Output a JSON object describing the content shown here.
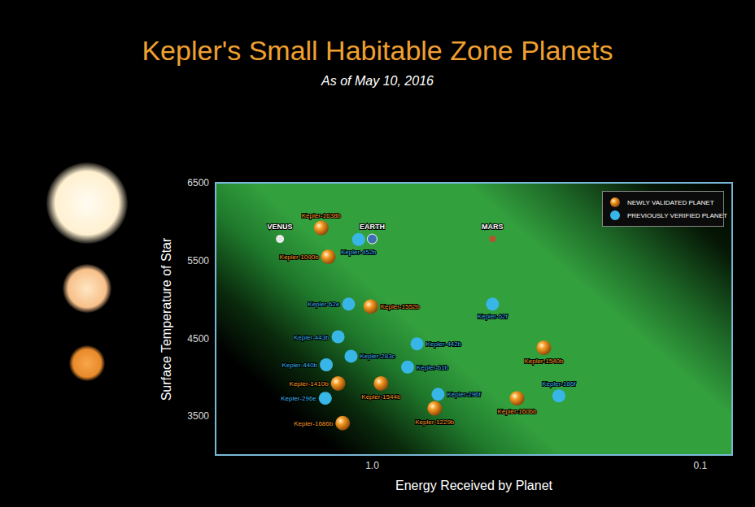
{
  "chart_data": {
    "type": "scatter",
    "title": "Kepler's Small Habitable Zone Planets",
    "subtitle": "As of May 10, 2016",
    "x_label": "Energy Received by Planet",
    "y_label": "Surface Temperature of Star",
    "log": "x",
    "xlim": [
      3,
      0.08
    ],
    "ylim": [
      3000,
      6500
    ],
    "xticks": [
      {
        "value": 1,
        "label": "1.0"
      },
      {
        "value": 0.1,
        "label": "0.1"
      }
    ],
    "yticks": [
      3500,
      4500,
      5500,
      6500
    ],
    "grid": false,
    "legend": "upper right",
    "series": [
      {
        "name": "NEWLY VALIDATED PLANET",
        "color": "#f59a23",
        "marker": "sphere",
        "labels": [
          "Kepler-1638b",
          "Kepler-1090b",
          "Kepler-1552b",
          "Kepler-1540b",
          "Kepler-1410b",
          "Kepler-1544b",
          "Kepler-1229b",
          "Kepler-1606b",
          "Kepler-1686b"
        ],
        "x": [
          1.43,
          1.36,
          1.01,
          0.3,
          1.27,
          0.94,
          0.645,
          0.362,
          1.23
        ],
        "values": [
          5920,
          5550,
          4910,
          4380,
          3920,
          3920,
          3600,
          3730,
          3410
        ]
      },
      {
        "name": "PREVIOUSLY VERIFIED PLANET",
        "color": "#38b6e8",
        "marker": "circle",
        "labels": [
          "Kepler-452b",
          "Kepler-62e",
          "Kepler-62f",
          "Kepler-443b",
          "Kepler-283c",
          "Kepler-440b",
          "Kepler-442b",
          "Kepler-61b",
          "Kepler-186f",
          "Kepler-296f",
          "Kepler-296e"
        ],
        "x": [
          1.1,
          1.18,
          0.43,
          1.27,
          1.16,
          1.38,
          0.73,
          0.78,
          0.27,
          0.63,
          1.39
        ],
        "values": [
          5770,
          4940,
          4940,
          4520,
          4270,
          4160,
          4430,
          4130,
          3760,
          3780,
          3730
        ]
      }
    ],
    "solar_system": {
      "labels": [
        "VENUS",
        "EARTH",
        "MARS"
      ],
      "x": [
        1.91,
        1,
        0.43
      ],
      "values": [
        5778,
        5778,
        5778
      ],
      "colors": [
        "#e8e8e8",
        "#3d6fb5",
        "#b5532e"
      ]
    }
  }
}
